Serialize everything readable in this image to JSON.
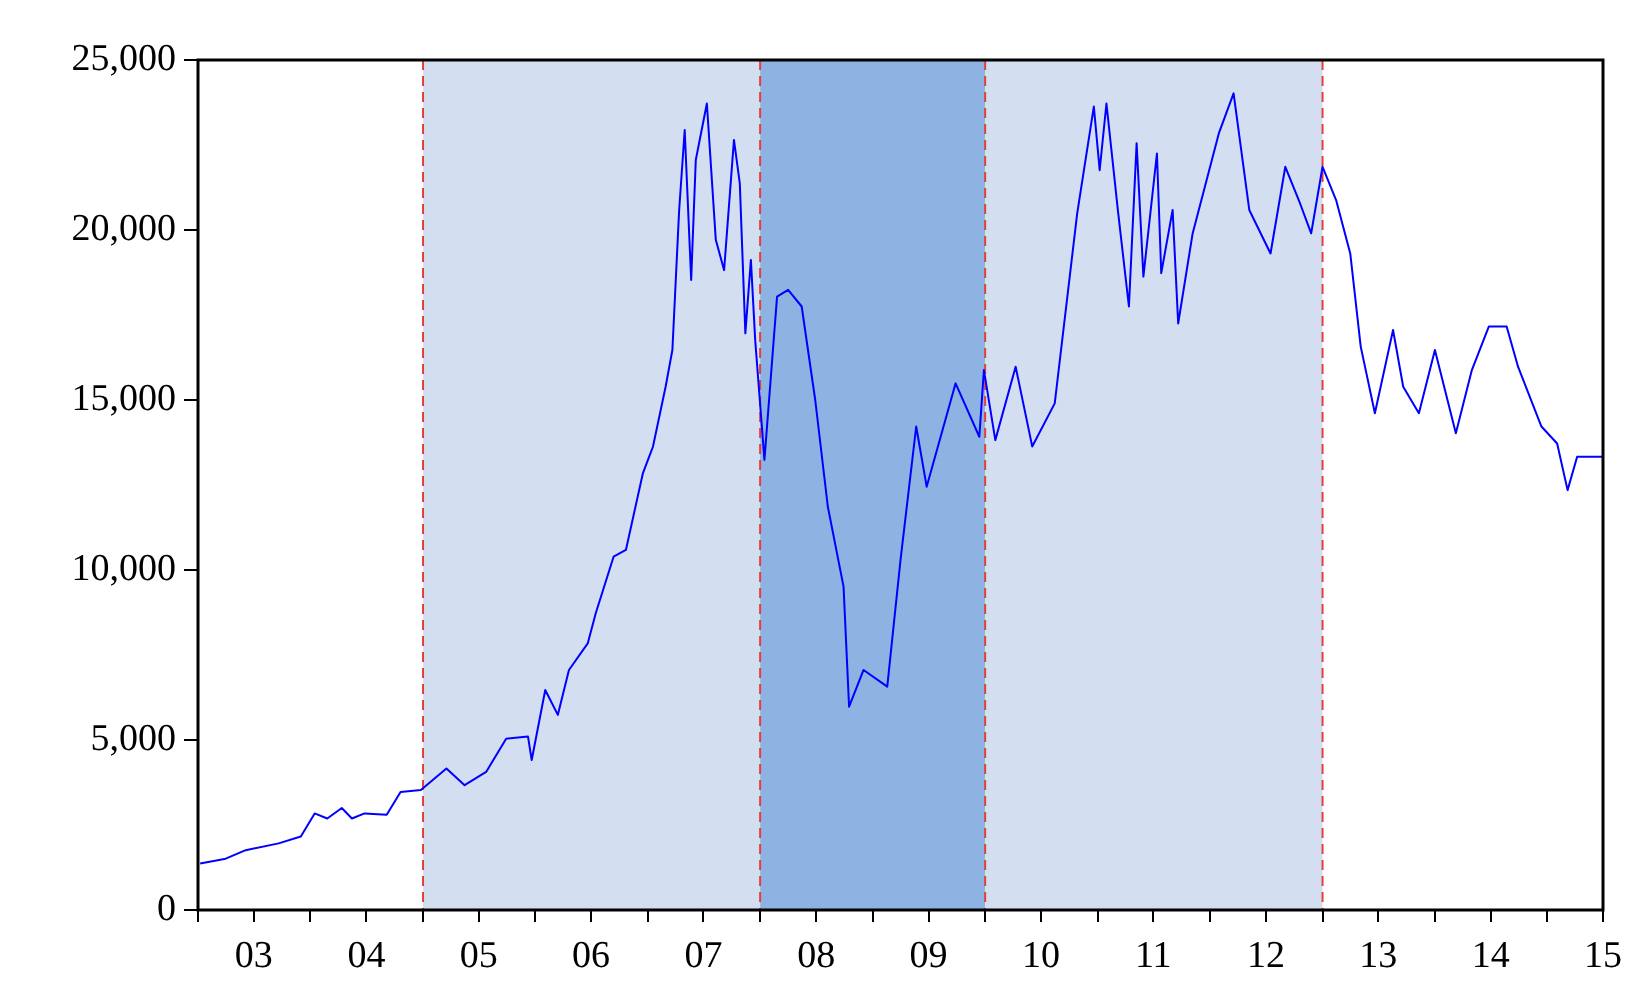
{
  "chart_data": {
    "type": "line",
    "marker": "none",
    "line_style": "solid",
    "grid": false,
    "legend": false,
    "xlim": [
      "2003-01-01",
      "2015-07-01"
    ],
    "xticks": [
      {
        "value": "2003-01-01",
        "label": null
      },
      {
        "value": "2003-07-01",
        "label": "03"
      },
      {
        "value": "2004-01-01",
        "label": null
      },
      {
        "value": "2004-07-01",
        "label": "04"
      },
      {
        "value": "2005-01-01",
        "label": null
      },
      {
        "value": "2005-07-01",
        "label": "05"
      },
      {
        "value": "2006-01-01",
        "label": null
      },
      {
        "value": "2006-07-01",
        "label": "06"
      },
      {
        "value": "2007-01-01",
        "label": null
      },
      {
        "value": "2007-07-01",
        "label": "07"
      },
      {
        "value": "2008-01-01",
        "label": null
      },
      {
        "value": "2008-07-01",
        "label": "08"
      },
      {
        "value": "2009-01-01",
        "label": null
      },
      {
        "value": "2009-07-01",
        "label": "09"
      },
      {
        "value": "2010-01-01",
        "label": null
      },
      {
        "value": "2010-07-01",
        "label": "10"
      },
      {
        "value": "2011-01-01",
        "label": null
      },
      {
        "value": "2011-07-01",
        "label": "11"
      },
      {
        "value": "2012-01-01",
        "label": null
      },
      {
        "value": "2012-07-01",
        "label": "12"
      },
      {
        "value": "2013-01-01",
        "label": null
      },
      {
        "value": "2013-07-01",
        "label": "13"
      },
      {
        "value": "2014-01-01",
        "label": null
      },
      {
        "value": "2014-07-01",
        "label": "14"
      },
      {
        "value": "2015-01-01",
        "label": null
      },
      {
        "value": "2015-07-01",
        "label": "15"
      }
    ],
    "ylim": [
      0,
      25000
    ],
    "yticks": [
      0,
      {
        "value": 5000,
        "label": "5,000"
      },
      {
        "value": 10000,
        "label": "10,000"
      },
      {
        "value": 15000,
        "label": "15,000"
      },
      {
        "value": 20000,
        "label": "20,000"
      },
      {
        "value": 25000,
        "label": "25,000"
      }
    ],
    "bands": [
      {
        "axis": "x",
        "from": "2005-01-01",
        "to": "2008-01-01",
        "color": "#d3dff0"
      },
      {
        "axis": "x",
        "from": "2008-01-01",
        "to": "2010-01-01",
        "color": "#8db3e2"
      },
      {
        "axis": "x",
        "from": "2010-01-01",
        "to": "2013-01-01",
        "color": "#d3dff0"
      }
    ],
    "ref_lines": [
      {
        "axis": "x",
        "value": "2005-01-01",
        "color": "#e0403a",
        "line_style": "dashed"
      },
      {
        "axis": "x",
        "value": "2008-01-01",
        "color": "#e0403a",
        "line_style": "dashed"
      },
      {
        "axis": "x",
        "value": "2010-01-01",
        "color": "#e0403a",
        "line_style": "dashed"
      },
      {
        "axis": "x",
        "value": "2013-01-01",
        "color": "#e0403a",
        "line_style": "dashed"
      }
    ],
    "series": [
      {
        "color": "#0000ff",
        "x": [
          "2003-01-08",
          "2003-04-01",
          "2003-06-05",
          "2003-09-20",
          "2003-12-01",
          "2004-01-15",
          "2004-02-25",
          "2004-04-12",
          "2004-05-15",
          "2004-06-25",
          "2004-09-05",
          "2004-10-20",
          "2004-12-25",
          "2005-03-18",
          "2005-05-16",
          "2005-07-25",
          "2005-09-28",
          "2005-12-08",
          "2005-12-20",
          "2006-02-02",
          "2006-03-15",
          "2006-04-20",
          "2006-06-20",
          "2006-07-16",
          "2006-09-12",
          "2006-10-22",
          "2006-12-16",
          "2007-01-18",
          "2007-02-28",
          "2007-03-22",
          "2007-04-13",
          "2007-05-01",
          "2007-05-22",
          "2007-06-06",
          "2007-07-12",
          "2007-08-10",
          "2007-09-06",
          "2007-10-08",
          "2007-10-27",
          "2007-11-14",
          "2007-12-02",
          "2007-12-16",
          "2008-01-15",
          "2008-02-25",
          "2008-04-01",
          "2008-05-15",
          "2008-06-28",
          "2008-08-08",
          "2008-09-28",
          "2008-10-16",
          "2008-12-02",
          "2009-02-17",
          "2009-04-01",
          "2009-05-22",
          "2009-06-25",
          "2009-09-27",
          "2009-12-13",
          "2009-12-28",
          "2010-02-03",
          "2010-04-10",
          "2010-06-03",
          "2010-08-15",
          "2010-10-27",
          "2010-12-20",
          "2011-01-08",
          "2011-01-30",
          "2011-03-08",
          "2011-04-13",
          "2011-05-08",
          "2011-05-30",
          "2011-07-13",
          "2011-07-27",
          "2011-09-02",
          "2011-09-20",
          "2011-11-06",
          "2012-01-30",
          "2012-03-18",
          "2012-05-08",
          "2012-07-16",
          "2012-09-02",
          "2012-10-20",
          "2012-11-25",
          "2013-01-01",
          "2013-02-14",
          "2013-04-01",
          "2013-05-05",
          "2013-06-20",
          "2013-08-18",
          "2013-09-20",
          "2013-11-10",
          "2014-01-01",
          "2014-03-10",
          "2014-05-01",
          "2014-06-25",
          "2014-08-22",
          "2014-09-28",
          "2014-12-13",
          "2015-02-02",
          "2015-03-08",
          "2015-04-08",
          "2015-07-01"
        ],
        "values": [
          1370,
          1510,
          1760,
          1960,
          2160,
          2840,
          2690,
          3000,
          2690,
          2840,
          2800,
          3470,
          3530,
          4160,
          3670,
          4060,
          5040,
          5100,
          4410,
          6470,
          5740,
          7060,
          7840,
          8730,
          10390,
          10590,
          12840,
          13630,
          15390,
          16470,
          20590,
          22940,
          18530,
          22060,
          23720,
          19710,
          18820,
          22650,
          21370,
          16960,
          19120,
          16760,
          13240,
          18040,
          18240,
          17750,
          15000,
          11860,
          9510,
          5980,
          7060,
          6570,
          10290,
          14220,
          12450,
          15490,
          13920,
          15880,
          13820,
          15980,
          13630,
          14900,
          20490,
          23630,
          21760,
          23720,
          20590,
          17750,
          22550,
          18630,
          22250,
          18730,
          20590,
          17250,
          19900,
          22840,
          24020,
          20590,
          19310,
          21860,
          20780,
          19900,
          21860,
          20880,
          19310,
          16570,
          14610,
          17060,
          15390,
          14610,
          16470,
          14020,
          15880,
          17160,
          17160,
          15980,
          14220,
          13720,
          12350,
          13330,
          13330
        ]
      }
    ]
  }
}
